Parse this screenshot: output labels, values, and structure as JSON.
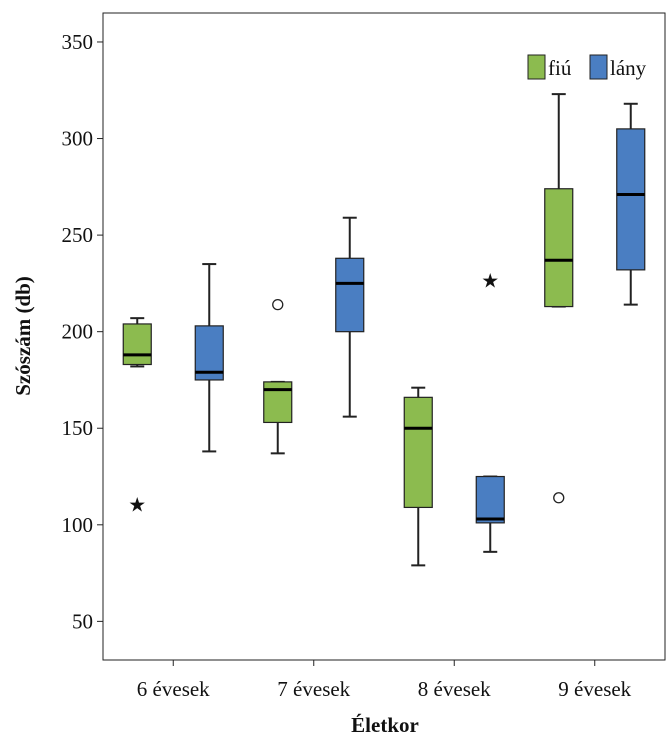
{
  "chart_data": {
    "type": "boxplot",
    "title": "",
    "xlabel": "Életkor",
    "ylabel": "Szószám (db)",
    "ylim": [
      30,
      365
    ],
    "yticks": [
      50,
      100,
      150,
      200,
      250,
      300,
      350
    ],
    "grid": false,
    "legend_position": "top-right",
    "categories": [
      "6 évesek",
      "7 évesek",
      "8 évesek",
      "9 évesek"
    ],
    "series": [
      {
        "name": "fiú",
        "color": "#8cbb4f",
        "boxes": [
          {
            "min": 182,
            "q1": 183,
            "median": 188,
            "q3": 204,
            "max": 207,
            "outliers": [],
            "extremes": [
              111
            ]
          },
          {
            "min": 137,
            "q1": 153,
            "median": 170,
            "q3": 174,
            "max": 174,
            "outliers": [
              214
            ],
            "extremes": []
          },
          {
            "min": 79,
            "q1": 109,
            "median": 150,
            "q3": 166,
            "max": 171,
            "outliers": [],
            "extremes": []
          },
          {
            "min": 213,
            "q1": 213,
            "median": 237,
            "q3": 274,
            "max": 323,
            "outliers": [
              114
            ],
            "extremes": []
          }
        ]
      },
      {
        "name": "lány",
        "color": "#4a7ec2",
        "boxes": [
          {
            "min": 138,
            "q1": 175,
            "median": 179,
            "q3": 203,
            "max": 235,
            "outliers": [],
            "extremes": []
          },
          {
            "min": 156,
            "q1": 200,
            "median": 225,
            "q3": 238,
            "max": 259,
            "outliers": [],
            "extremes": []
          },
          {
            "min": 86,
            "q1": 101,
            "median": 103,
            "q3": 125,
            "max": 125,
            "outliers": [],
            "extremes": [
              227
            ]
          },
          {
            "min": 214,
            "q1": 232,
            "median": 271,
            "q3": 305,
            "max": 318,
            "outliers": [],
            "extremes": []
          }
        ]
      }
    ]
  }
}
